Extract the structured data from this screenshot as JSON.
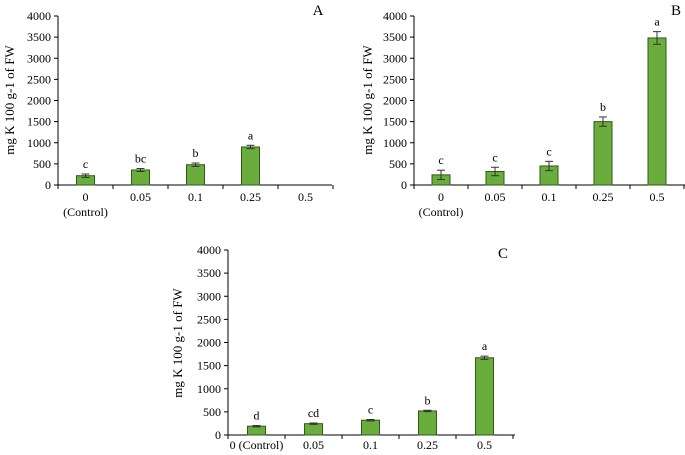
{
  "colors": {
    "bar_fill": "#6aad3d",
    "bar_stroke": "#2f5a1a",
    "axis": "#000000",
    "error_bar": "#333333"
  },
  "chart_data": [
    {
      "id": "A",
      "type": "bar",
      "panel_label": "A",
      "ylabel": "mg K 100 g-1 of FW",
      "ylim": [
        0,
        4000
      ],
      "yticks": [
        0,
        500,
        1000,
        1500,
        2000,
        2500,
        3000,
        3500,
        4000
      ],
      "categories": [
        [
          "0",
          "(Control)"
        ],
        [
          "0.05"
        ],
        [
          "0.1"
        ],
        [
          "0.25"
        ],
        [
          "0.5"
        ]
      ],
      "values": [
        220,
        355,
        480,
        900,
        null
      ],
      "errors": [
        40,
        35,
        40,
        40,
        null
      ],
      "letters": [
        "c",
        "bc",
        "b",
        "a",
        ""
      ],
      "grid": false
    },
    {
      "id": "B",
      "type": "bar",
      "panel_label": "B",
      "ylabel": "mg K 100 g-1 of FW",
      "ylim": [
        0,
        4000
      ],
      "yticks": [
        0,
        500,
        1000,
        1500,
        2000,
        2500,
        3000,
        3500,
        4000
      ],
      "categories": [
        [
          "0",
          "(Control)"
        ],
        [
          "0.05"
        ],
        [
          "0.1"
        ],
        [
          "0.25"
        ],
        [
          "0.5"
        ]
      ],
      "values": [
        240,
        320,
        450,
        1500,
        3480
      ],
      "errors": [
        110,
        100,
        110,
        110,
        150
      ],
      "letters": [
        "c",
        "c",
        "c",
        "b",
        "a"
      ],
      "grid": false
    },
    {
      "id": "C",
      "type": "bar",
      "panel_label": "C",
      "ylabel": "mg K 100 g-1 of FW",
      "ylim": [
        0,
        4000
      ],
      "yticks": [
        0,
        500,
        1000,
        1500,
        2000,
        2500,
        3000,
        3500,
        4000
      ],
      "categories": [
        [
          "0 (Control)"
        ],
        [
          "0.05"
        ],
        [
          "0.1"
        ],
        [
          "0.25"
        ],
        [
          "0.5"
        ]
      ],
      "values": [
        190,
        245,
        320,
        520,
        1670
      ],
      "errors": [
        15,
        15,
        15,
        15,
        35
      ],
      "letters": [
        "d",
        "cd",
        "c",
        "b",
        "a"
      ],
      "grid": false
    }
  ]
}
